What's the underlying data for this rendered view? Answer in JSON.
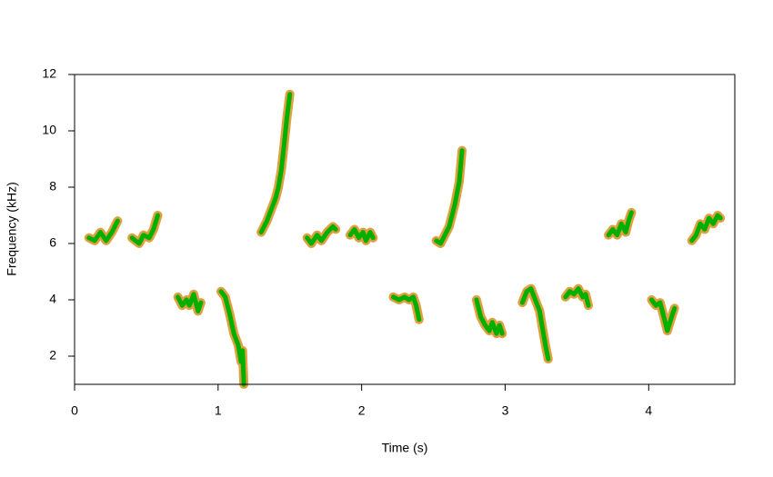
{
  "chart_data": {
    "type": "spectrogram",
    "xlabel": "Time (s)",
    "ylabel": "Frequency (kHz)",
    "xlim": [
      0,
      4.6
    ],
    "ylim": [
      1,
      12
    ],
    "xticks": [
      0,
      1,
      2,
      3,
      4
    ],
    "yticks": [
      2,
      4,
      6,
      8,
      10,
      12
    ],
    "color": "#00b000",
    "edge_color": "#e0a040",
    "traces": [
      {
        "x": [
          0.1,
          0.14,
          0.18,
          0.22,
          0.26,
          0.3
        ],
        "values": [
          6.2,
          6.1,
          6.4,
          6.1,
          6.4,
          6.8
        ]
      },
      {
        "x": [
          0.4,
          0.45,
          0.48,
          0.52,
          0.55,
          0.58
        ],
        "values": [
          6.2,
          6.0,
          6.3,
          6.2,
          6.5,
          7.0
        ]
      },
      {
        "x": [
          0.72,
          0.75,
          0.78,
          0.8,
          0.83,
          0.86,
          0.88
        ],
        "values": [
          4.1,
          3.8,
          4.0,
          3.8,
          4.2,
          3.6,
          3.9
        ]
      },
      {
        "x": [
          1.02,
          1.05,
          1.08,
          1.11,
          1.14,
          1.16,
          1.17,
          1.18
        ],
        "values": [
          4.3,
          4.1,
          3.5,
          2.8,
          2.4,
          1.8,
          2.2,
          1.0
        ]
      },
      {
        "x": [
          1.3,
          1.34,
          1.37,
          1.4,
          1.42,
          1.44,
          1.46,
          1.48,
          1.5
        ],
        "values": [
          6.4,
          6.8,
          7.2,
          7.6,
          8.0,
          8.6,
          9.5,
          10.5,
          11.3
        ]
      },
      {
        "x": [
          1.62,
          1.65,
          1.69,
          1.72,
          1.76,
          1.8,
          1.82
        ],
        "values": [
          6.2,
          6.0,
          6.3,
          6.1,
          6.4,
          6.6,
          6.5
        ]
      },
      {
        "x": [
          1.92,
          1.95,
          1.98,
          2.01,
          2.03,
          2.06,
          2.08
        ],
        "values": [
          6.3,
          6.5,
          6.2,
          6.4,
          6.1,
          6.4,
          6.2
        ]
      },
      {
        "x": [
          2.22,
          2.26,
          2.3,
          2.33,
          2.36,
          2.38,
          2.4
        ],
        "values": [
          4.1,
          4.0,
          4.1,
          4.0,
          4.1,
          3.8,
          3.3
        ]
      },
      {
        "x": [
          2.52,
          2.55,
          2.58,
          2.61,
          2.63,
          2.65,
          2.68,
          2.7
        ],
        "values": [
          6.1,
          6.0,
          6.3,
          6.6,
          7.0,
          7.4,
          8.2,
          9.3
        ]
      },
      {
        "x": [
          2.8,
          2.83,
          2.86,
          2.89,
          2.91,
          2.94,
          2.96,
          2.98
        ],
        "values": [
          4.0,
          3.4,
          3.1,
          2.9,
          3.2,
          2.8,
          3.1,
          2.8
        ]
      },
      {
        "x": [
          3.12,
          3.15,
          3.18,
          3.21,
          3.24,
          3.26,
          3.28,
          3.3
        ],
        "values": [
          3.9,
          4.3,
          4.4,
          4.0,
          3.6,
          3.0,
          2.4,
          1.9
        ]
      },
      {
        "x": [
          3.42,
          3.45,
          3.48,
          3.51,
          3.54,
          3.56,
          3.58
        ],
        "values": [
          4.1,
          4.3,
          4.2,
          4.4,
          4.1,
          4.2,
          3.8
        ]
      },
      {
        "x": [
          3.72,
          3.75,
          3.78,
          3.81,
          3.84,
          3.86,
          3.88
        ],
        "values": [
          6.3,
          6.5,
          6.3,
          6.7,
          6.4,
          6.8,
          7.1
        ]
      },
      {
        "x": [
          4.02,
          4.05,
          4.08,
          4.11,
          4.13,
          4.16,
          4.18
        ],
        "values": [
          4.0,
          3.8,
          3.9,
          3.3,
          2.9,
          3.4,
          3.7
        ]
      },
      {
        "x": [
          4.3,
          4.33,
          4.36,
          4.39,
          4.42,
          4.45,
          4.48,
          4.5
        ],
        "values": [
          6.1,
          6.3,
          6.7,
          6.5,
          6.9,
          6.7,
          7.0,
          6.9
        ]
      }
    ]
  }
}
